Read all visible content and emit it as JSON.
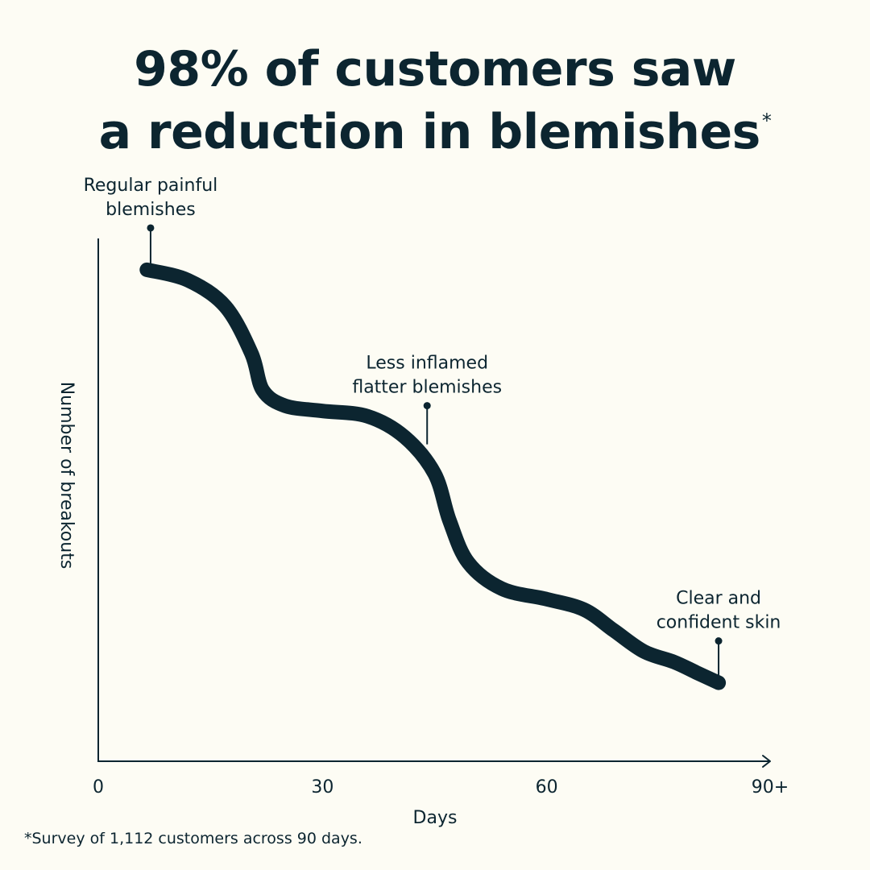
{
  "headline": {
    "line1": "98% of customers saw",
    "line2": "a reduction in blemishes",
    "asterisk": "*"
  },
  "footnote": "*Survey of 1,112 customers across 90 days.",
  "colors": {
    "background": "#fdfcf4",
    "ink": "#0c2530"
  },
  "chart_data": {
    "type": "line",
    "xlabel": "Days",
    "ylabel": "Number of breakouts",
    "xlim": [
      0,
      90
    ],
    "x_ticks": [
      "0",
      "30",
      "60",
      "90+"
    ],
    "x_tick_values": [
      0,
      30,
      60,
      90
    ],
    "y_ticks_shown": false,
    "series": [
      {
        "x": [
          6.5,
          12,
          17,
          20.5,
          22,
          25,
          30,
          36,
          41,
          45,
          47,
          49.5,
          54,
          60,
          65,
          69,
          73,
          77,
          80,
          83
        ],
        "y": [
          0.94,
          0.92,
          0.87,
          0.78,
          0.71,
          0.68,
          0.67,
          0.66,
          0.62,
          0.55,
          0.46,
          0.38,
          0.33,
          0.31,
          0.29,
          0.25,
          0.21,
          0.19,
          0.17,
          0.15
        ]
      }
    ],
    "annotations": [
      {
        "x": 7,
        "y": 0.94,
        "lines": [
          "Regular painful",
          "blemishes"
        ]
      },
      {
        "x": 44,
        "y": 0.6,
        "lines": [
          "Less inflamed",
          "flatter blemishes"
        ]
      },
      {
        "x": 83,
        "y": 0.15,
        "lines": [
          "Clear and",
          "confident skin"
        ]
      }
    ]
  }
}
